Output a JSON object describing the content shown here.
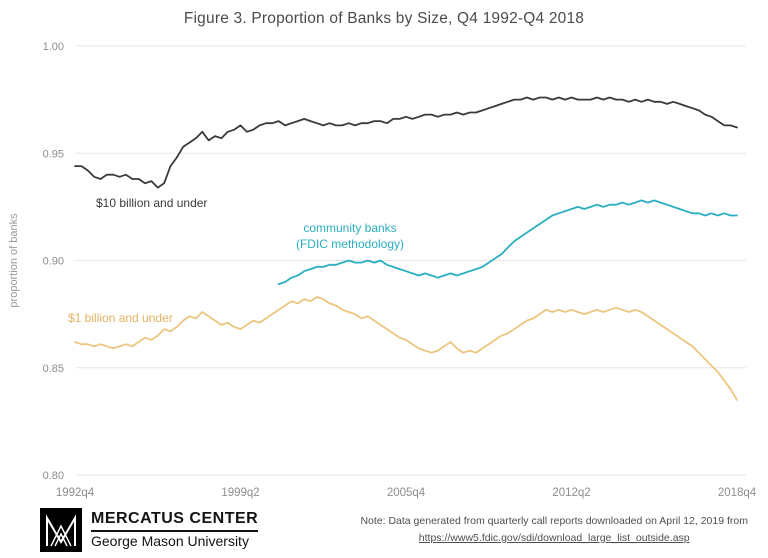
{
  "title": "Figure 3. Proportion of Banks by Size, Q4 1992-Q4 2018",
  "chart_data": {
    "type": "line",
    "title": "Figure 3. Proportion of Banks by Size, Q4 1992-Q4 2018",
    "xlabel": "",
    "ylabel": "proportion of banks",
    "ylim": [
      0.8,
      1.0
    ],
    "yticks": [
      1.0,
      0.95,
      0.9,
      0.85,
      0.8
    ],
    "xticks": [
      "1992q4",
      "1999q2",
      "2005q4",
      "2012q2",
      "2018q4"
    ],
    "x_unit": "quarter",
    "x_start": "1992q4",
    "x_end": "2018q4",
    "total_quarters": 105,
    "grid": "horizontal",
    "legend_position": "inline-annotations",
    "series": [
      {
        "id": "10b-under",
        "name": "$10 billion and under",
        "color": "#3a3a3a",
        "start_index": 0,
        "values": [
          0.944,
          0.944,
          0.942,
          0.939,
          0.938,
          0.94,
          0.94,
          0.939,
          0.94,
          0.938,
          0.938,
          0.936,
          0.937,
          0.934,
          0.936,
          0.944,
          0.948,
          0.953,
          0.955,
          0.957,
          0.96,
          0.956,
          0.958,
          0.957,
          0.96,
          0.961,
          0.963,
          0.96,
          0.961,
          0.963,
          0.964,
          0.964,
          0.965,
          0.963,
          0.964,
          0.965,
          0.966,
          0.965,
          0.964,
          0.963,
          0.964,
          0.963,
          0.963,
          0.964,
          0.963,
          0.964,
          0.964,
          0.965,
          0.965,
          0.964,
          0.966,
          0.966,
          0.967,
          0.966,
          0.967,
          0.968,
          0.968,
          0.967,
          0.968,
          0.968,
          0.969,
          0.968,
          0.969,
          0.969,
          0.97,
          0.971,
          0.972,
          0.973,
          0.974,
          0.975,
          0.975,
          0.976,
          0.975,
          0.976,
          0.976,
          0.975,
          0.976,
          0.975,
          0.976,
          0.975,
          0.975,
          0.975,
          0.976,
          0.975,
          0.976,
          0.975,
          0.975,
          0.974,
          0.975,
          0.974,
          0.975,
          0.974,
          0.974,
          0.973,
          0.974,
          0.973,
          0.972,
          0.971,
          0.97,
          0.968,
          0.967,
          0.965,
          0.963,
          0.963,
          0.962
        ]
      },
      {
        "id": "community-banks",
        "name": "community banks (FDIC methodology)",
        "color": "#2aafc0",
        "start_index": 32,
        "values": [
          0.889,
          0.89,
          0.892,
          0.893,
          0.895,
          0.896,
          0.897,
          0.897,
          0.898,
          0.898,
          0.899,
          0.9,
          0.899,
          0.899,
          0.9,
          0.899,
          0.9,
          0.898,
          0.897,
          0.896,
          0.895,
          0.894,
          0.893,
          0.894,
          0.893,
          0.892,
          0.893,
          0.894,
          0.893,
          0.894,
          0.895,
          0.896,
          0.897,
          0.899,
          0.901,
          0.903,
          0.906,
          0.909,
          0.911,
          0.913,
          0.915,
          0.917,
          0.919,
          0.921,
          0.922,
          0.923,
          0.924,
          0.925,
          0.924,
          0.925,
          0.926,
          0.925,
          0.926,
          0.926,
          0.927,
          0.926,
          0.927,
          0.928,
          0.927,
          0.928,
          0.927,
          0.926,
          0.925,
          0.924,
          0.923,
          0.922,
          0.922,
          0.921,
          0.922,
          0.921,
          0.922,
          0.921,
          0.921
        ]
      },
      {
        "id": "1b-under",
        "name": "$1 billion and under",
        "color": "#ecc57e",
        "start_index": 0,
        "values": [
          0.862,
          0.861,
          0.861,
          0.86,
          0.861,
          0.86,
          0.859,
          0.86,
          0.861,
          0.86,
          0.862,
          0.864,
          0.863,
          0.865,
          0.868,
          0.867,
          0.869,
          0.872,
          0.874,
          0.873,
          0.876,
          0.874,
          0.872,
          0.87,
          0.871,
          0.869,
          0.868,
          0.87,
          0.872,
          0.871,
          0.873,
          0.875,
          0.877,
          0.879,
          0.881,
          0.88,
          0.882,
          0.881,
          0.883,
          0.882,
          0.88,
          0.879,
          0.877,
          0.876,
          0.875,
          0.873,
          0.874,
          0.872,
          0.87,
          0.868,
          0.866,
          0.864,
          0.863,
          0.861,
          0.859,
          0.858,
          0.857,
          0.858,
          0.86,
          0.862,
          0.859,
          0.857,
          0.858,
          0.857,
          0.859,
          0.861,
          0.863,
          0.865,
          0.866,
          0.868,
          0.87,
          0.872,
          0.873,
          0.875,
          0.877,
          0.876,
          0.877,
          0.876,
          0.877,
          0.876,
          0.875,
          0.876,
          0.877,
          0.876,
          0.877,
          0.878,
          0.877,
          0.876,
          0.877,
          0.876,
          0.874,
          0.872,
          0.87,
          0.868,
          0.866,
          0.864,
          0.862,
          0.86,
          0.857,
          0.854,
          0.851,
          0.848,
          0.844,
          0.84,
          0.835
        ]
      }
    ],
    "annotations": [
      {
        "lines": [
          "$10 billion and under"
        ],
        "x": 96,
        "y": 207,
        "anchor": "start",
        "color": "#3a3a3a"
      },
      {
        "lines": [
          "community banks",
          "(FDIC methodology)"
        ],
        "x": 350,
        "y": 232,
        "anchor": "middle",
        "color": "#2aafc0"
      },
      {
        "lines": [
          "$1 billion and under"
        ],
        "x": 68,
        "y": 322,
        "anchor": "start",
        "color": "#e2b363"
      }
    ]
  },
  "footer": {
    "org_name": "MERCATUS CENTER",
    "org_sub": "George Mason University",
    "note_line1": "Note: Data generated from quarterly call reports downloaded on April 12, 2019 from",
    "note_link": "https://www5.fdic.gov/sdi/download_large_list_outside.asp"
  }
}
